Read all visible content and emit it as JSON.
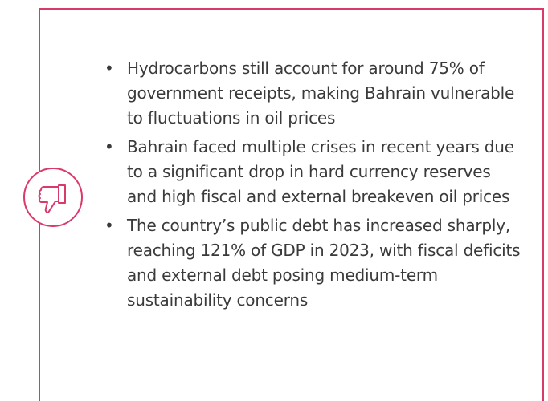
{
  "bullets": [
    "Hydrocarbons still account for around 75% of government receipts, making Bahrain vulnerable to fluctuations in oil prices",
    "Bahrain faced multiple crises in recent years due to a significant drop in hard currency reserves and high fiscal and external breakeven oil prices",
    "The country’s public debt has increased sharply, reaching 121% of GDP in 2023, with fiscal deficits and external debt posing medium-term sustainability concerns"
  ]
}
